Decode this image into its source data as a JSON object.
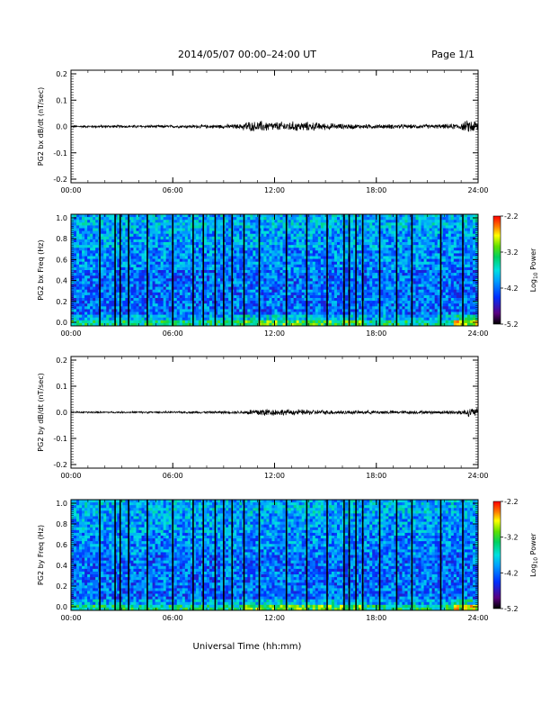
{
  "header": {
    "title": "2014/05/07  00:00–24:00 UT",
    "page": "Page 1/1"
  },
  "footer": {
    "xlabel": "Universal Time (hh:mm)"
  },
  "colors": {
    "trace": "#000000",
    "spectrogram_background": "#1a6cff",
    "data_gap_lines": "#000000"
  },
  "colorbar": {
    "label_main": "Log",
    "label_sub": "10",
    "label_tail": " Power",
    "ticks": [
      "-2.2",
      "-3.2",
      "-4.2",
      "-5.2"
    ]
  },
  "chart_data": [
    {
      "type": "line",
      "ylabel": "PG2 bx dB/dt (nT/sec)",
      "x_ticks": [
        "00:00",
        "06:00",
        "12:00",
        "18:00",
        "24:00"
      ],
      "y_ticks": [
        "0.2",
        "0.1",
        "0.0",
        "-0.1",
        "-0.2"
      ],
      "xlim": [
        0,
        24
      ],
      "ylim": [
        -0.2,
        0.2
      ],
      "series": [
        {
          "x": [
            0,
            2,
            4,
            6,
            8,
            10,
            10.3,
            10.7,
            11.2,
            12,
            13,
            14,
            15,
            16,
            17,
            18,
            19,
            20,
            21,
            22,
            23,
            23.5,
            24
          ],
          "y": [
            0.005,
            0.006,
            0.006,
            0.006,
            0.008,
            0.01,
            0.025,
            0.02,
            0.025,
            0.02,
            0.022,
            0.02,
            0.015,
            0.012,
            0.01,
            0.01,
            0.01,
            0.009,
            0.009,
            0.01,
            0.015,
            0.03,
            0.03
          ]
        }
      ]
    },
    {
      "type": "heatmap",
      "ylabel": "PG2 bx Freq (Hz)",
      "x_ticks": [
        "00:00",
        "06:00",
        "12:00",
        "18:00",
        "24:00"
      ],
      "y_ticks": [
        "1.0",
        "0.8",
        "0.6",
        "0.4",
        "0.2",
        "0.0"
      ],
      "xlim": [
        0,
        24
      ],
      "ylim": [
        0,
        1
      ],
      "zlim": [
        -5.2,
        -2.2
      ],
      "data_gaps_hours": [
        1.7,
        2.6,
        2.9,
        3.4,
        4.5,
        6.0,
        7.2,
        7.8,
        8.5,
        9.0,
        9.5,
        10.2,
        11.1,
        12.7,
        13.9,
        15.1,
        16.1,
        16.4,
        16.8,
        17.2,
        18.2,
        19.2,
        20.1,
        21.8,
        23.1
      ],
      "series": [
        {
          "name": "",
          "values": [
            -3.9,
            -4.0,
            -4.1,
            -4.2,
            -4.2,
            -4.3
          ]
        }
      ]
    },
    {
      "type": "line",
      "ylabel": "PG2 by dB/dt (nT/sec)",
      "x_ticks": [
        "00:00",
        "06:00",
        "12:00",
        "18:00",
        "24:00"
      ],
      "y_ticks": [
        "0.2",
        "0.1",
        "0.0",
        "-0.1",
        "-0.2"
      ],
      "xlim": [
        0,
        24
      ],
      "ylim": [
        -0.2,
        0.2
      ],
      "series": [
        {
          "x": [
            0,
            2,
            4,
            6,
            8,
            10,
            10.3,
            10.7,
            11.2,
            12,
            13,
            14,
            15,
            16,
            17,
            18,
            19,
            20,
            21,
            22,
            23,
            23.5,
            24
          ],
          "y": [
            0.004,
            0.004,
            0.004,
            0.004,
            0.005,
            0.007,
            0.01,
            0.015,
            0.02,
            0.015,
            0.013,
            0.012,
            0.01,
            0.009,
            0.008,
            0.008,
            0.008,
            0.007,
            0.007,
            0.008,
            0.01,
            0.02,
            0.02
          ]
        }
      ]
    },
    {
      "type": "heatmap",
      "ylabel": "PG2 by Freq (Hz)",
      "x_ticks": [
        "00:00",
        "06:00",
        "12:00",
        "18:00",
        "24:00"
      ],
      "y_ticks": [
        "1.0",
        "0.8",
        "0.6",
        "0.4",
        "0.2",
        "0.0"
      ],
      "xlim": [
        0,
        24
      ],
      "ylim": [
        0,
        1
      ],
      "zlim": [
        -5.2,
        -2.2
      ],
      "data_gaps_hours": [
        1.7,
        2.6,
        2.9,
        3.4,
        4.5,
        6.0,
        7.2,
        7.8,
        8.5,
        9.0,
        9.5,
        10.2,
        11.1,
        12.7,
        13.9,
        15.1,
        16.1,
        16.4,
        16.8,
        17.2,
        18.2,
        19.2,
        20.1,
        21.8,
        23.1
      ],
      "series": [
        {
          "name": "",
          "values": [
            -3.9,
            -4.0,
            -4.1,
            -4.2,
            -4.2,
            -4.3
          ]
        }
      ]
    }
  ]
}
